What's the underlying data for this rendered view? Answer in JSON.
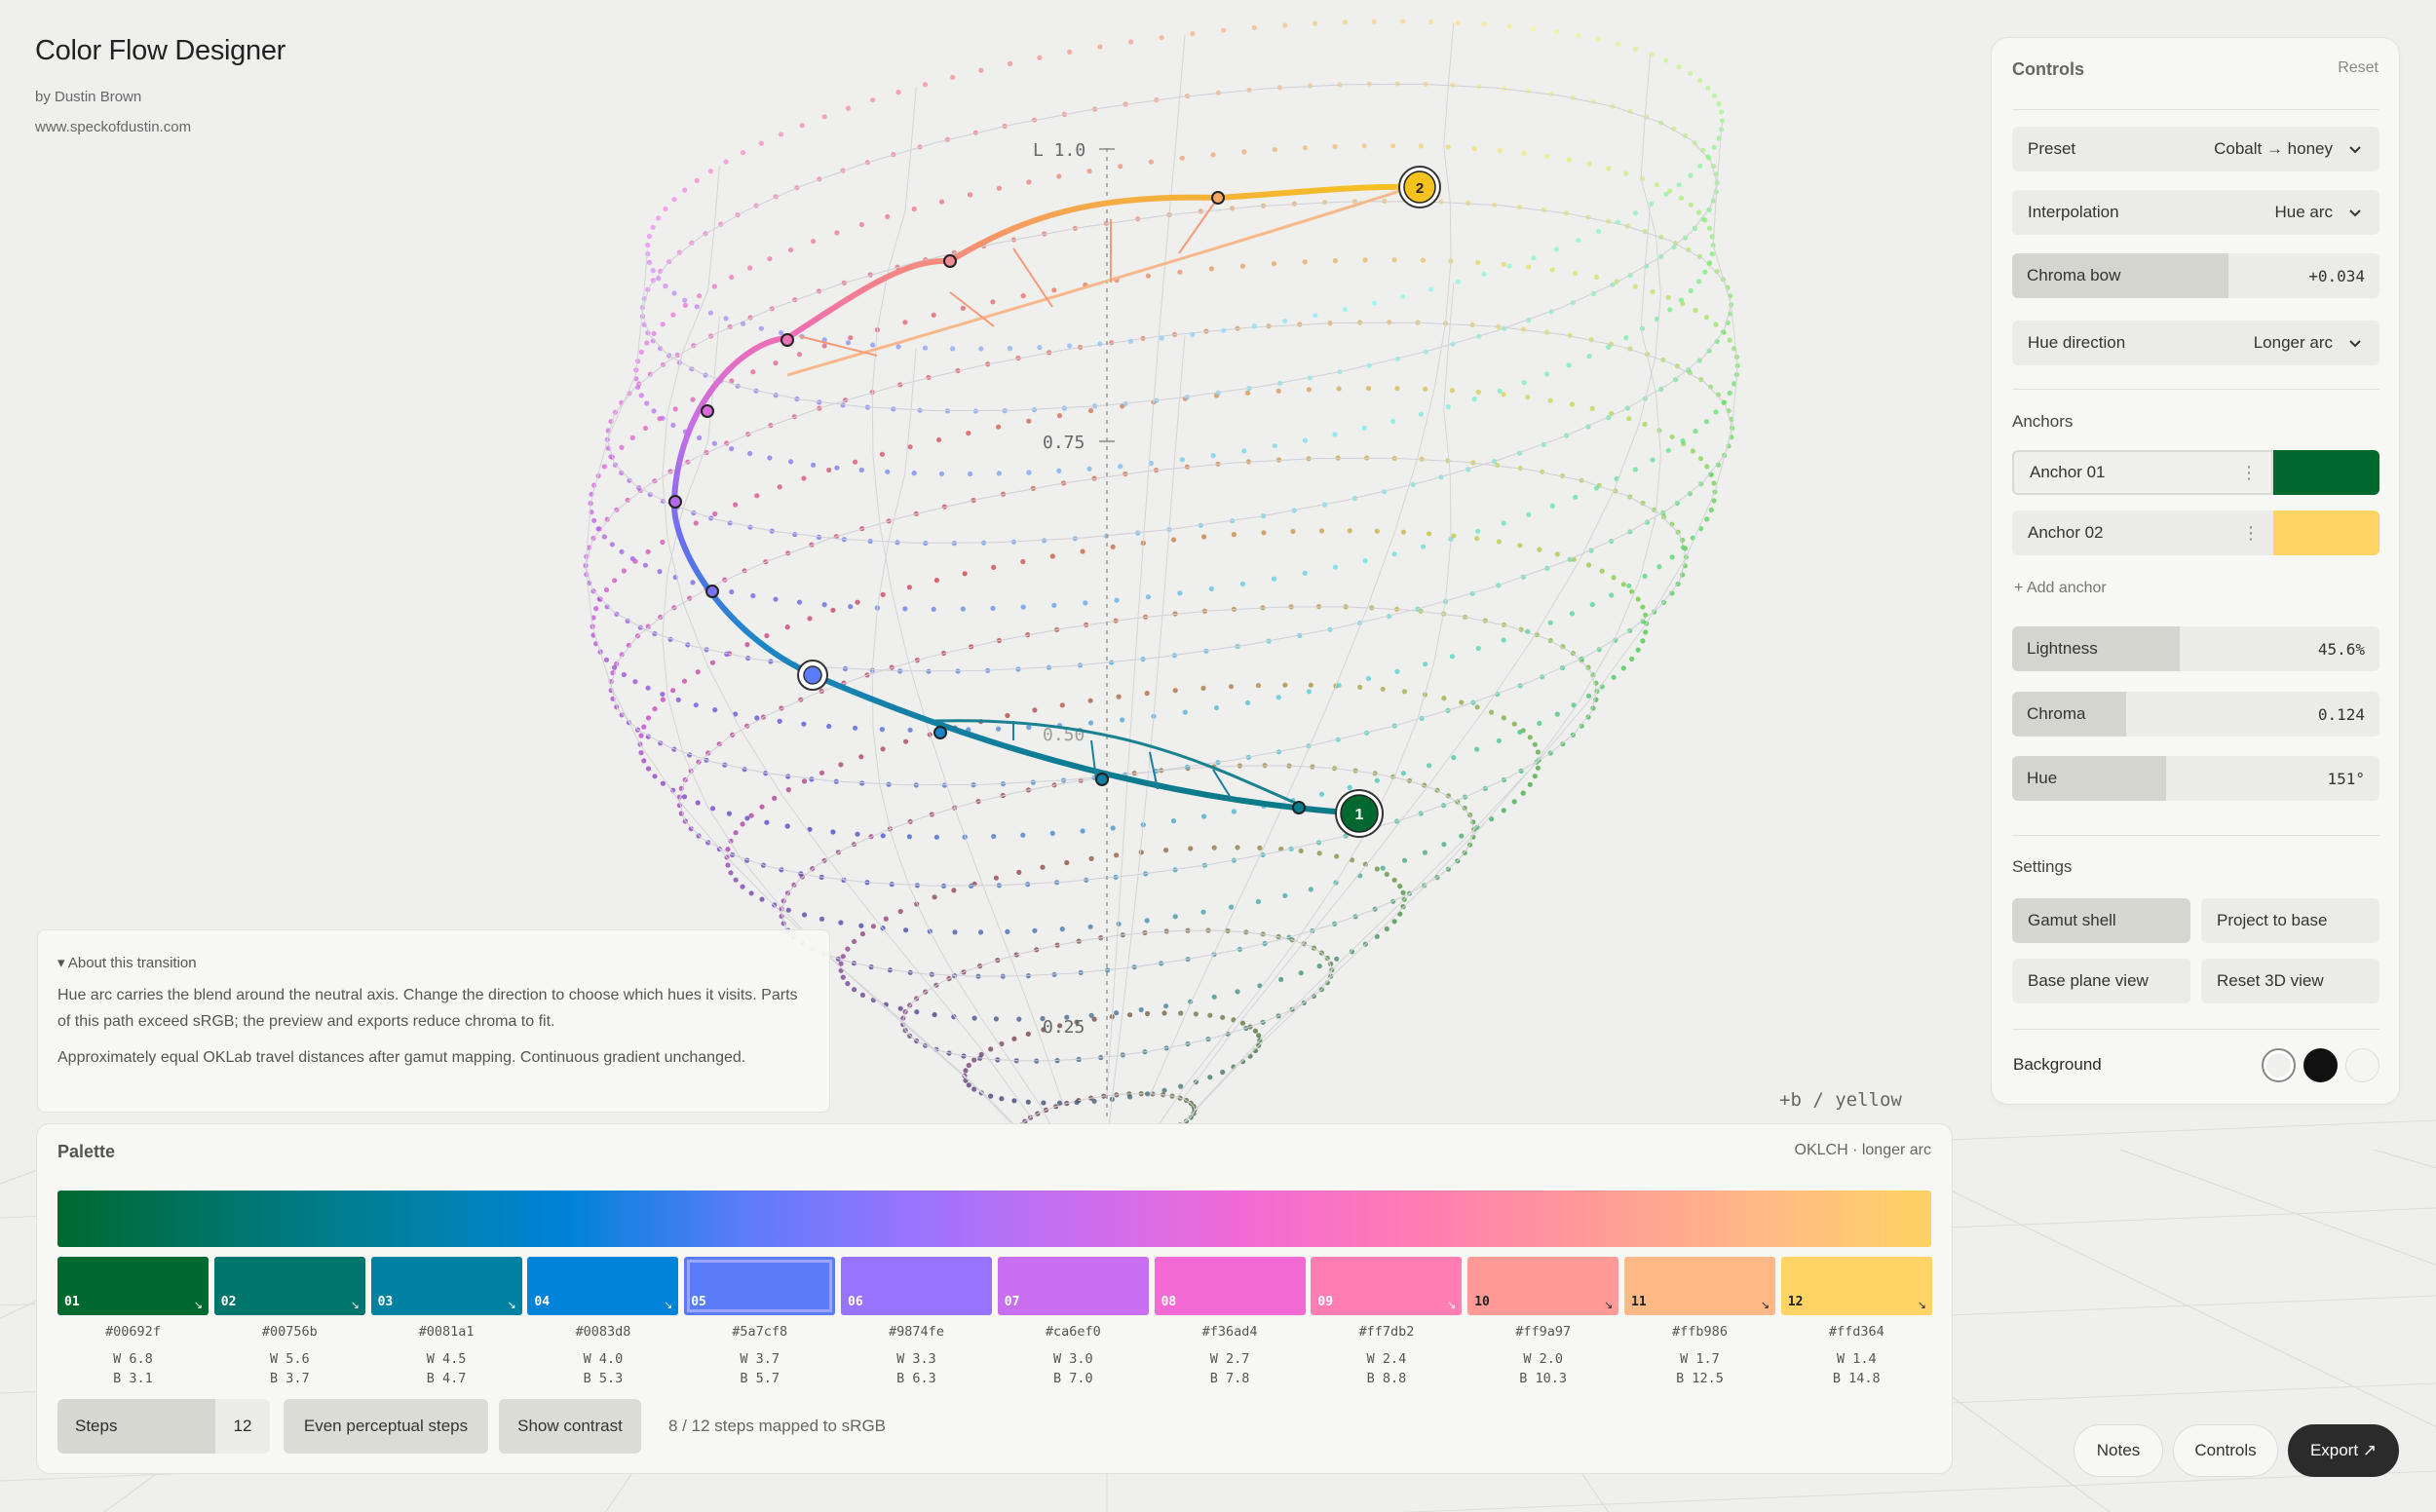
{
  "app": {
    "title": "Color Flow Designer",
    "byline": "by Dustin Brown",
    "site": "www.speckofdustin.com"
  },
  "viz": {
    "axis_labels": {
      "l_top": "L 1.0",
      "l_mid": "0.75",
      "l_low": "0.50",
      "l_bottom": "0.25",
      "b_axis": "+b / yellow"
    },
    "anchor_markers": [
      "1",
      "2"
    ]
  },
  "controls": {
    "title": "Controls",
    "reset_label": "Reset",
    "preset": {
      "label": "Preset",
      "value": "Cobalt → honey"
    },
    "interpolation": {
      "label": "Interpolation",
      "value": "Hue arc"
    },
    "chroma_bow": {
      "label": "Chroma bow",
      "value": "+0.034",
      "fill": 0.59
    },
    "hue_direction": {
      "label": "Hue direction",
      "value": "Longer arc"
    },
    "anchors_label": "Anchors",
    "anchors": [
      {
        "name": "Anchor 01",
        "color": "#00692f"
      },
      {
        "name": "Anchor 02",
        "color": "#ffd364"
      }
    ],
    "add_anchor_label": "+ Add anchor",
    "lightness": {
      "label": "Lightness",
      "value": "45.6%",
      "fill": 0.456
    },
    "chroma": {
      "label": "Chroma",
      "value": "0.124",
      "fill": 0.31
    },
    "hue": {
      "label": "Hue",
      "value": "151°",
      "fill": 0.42
    },
    "settings_label": "Settings",
    "settings_buttons": [
      "Gamut shell",
      "Project to base",
      "Base plane view",
      "Reset 3D view"
    ],
    "background_label": "Background",
    "background_swatches": [
      "#efefee",
      "#111111",
      "#f5f5f4"
    ]
  },
  "about": {
    "toggle": "▾ About this transition",
    "paragraph1": "Hue arc carries the blend around the neutral axis. Change the direction to choose which hues it visits. Parts of this path exceed sRGB; the preview and exports reduce chroma to fit.",
    "paragraph2": "Approximately equal OKLab travel distances after gamut mapping. Continuous gradient unchanged."
  },
  "palette": {
    "title": "Palette",
    "mode": "OKLCH · longer arc",
    "swatches": [
      {
        "idx": "01",
        "hex": "#00692f",
        "w": "W 6.8",
        "b": "B 3.1",
        "text": "#ffffff"
      },
      {
        "idx": "02",
        "hex": "#00756b",
        "w": "W 5.6",
        "b": "B 3.7",
        "text": "#ffffff"
      },
      {
        "idx": "03",
        "hex": "#0081a1",
        "w": "W 4.5",
        "b": "B 4.7",
        "text": "#ffffff"
      },
      {
        "idx": "04",
        "hex": "#0083d8",
        "w": "W 4.0",
        "b": "B 5.3",
        "text": "#ffffff"
      },
      {
        "idx": "05",
        "hex": "#5a7cf8",
        "w": "W 3.7",
        "b": "B 5.7",
        "text": "#ffffff"
      },
      {
        "idx": "06",
        "hex": "#9874fe",
        "w": "W 3.3",
        "b": "B 6.3",
        "text": "#ffffff"
      },
      {
        "idx": "07",
        "hex": "#ca6ef0",
        "w": "W 3.0",
        "b": "B 7.0",
        "text": "#ffffff"
      },
      {
        "idx": "08",
        "hex": "#f36ad4",
        "w": "W 2.7",
        "b": "B 7.8",
        "text": "#ffffff"
      },
      {
        "idx": "09",
        "hex": "#ff7db2",
        "w": "W 2.4",
        "b": "B 8.8",
        "text": "#ffffff"
      },
      {
        "idx": "10",
        "hex": "#ff9a97",
        "w": "W 2.0",
        "b": "B 10.3",
        "text": "#222222"
      },
      {
        "idx": "11",
        "hex": "#ffb986",
        "w": "W 1.7",
        "b": "B 12.5",
        "text": "#222222"
      },
      {
        "idx": "12",
        "hex": "#ffd364",
        "w": "W 1.4",
        "b": "B 14.8",
        "text": "#222222"
      }
    ],
    "selected_index": 4,
    "steps_label": "Steps",
    "steps_value": "12",
    "even_steps_label": "Even perceptual steps",
    "show_contrast_label": "Show contrast",
    "status": "8 / 12 steps mapped to sRGB"
  },
  "footer_buttons": {
    "notes": "Notes",
    "controls": "Controls",
    "export": "Export ↗"
  }
}
